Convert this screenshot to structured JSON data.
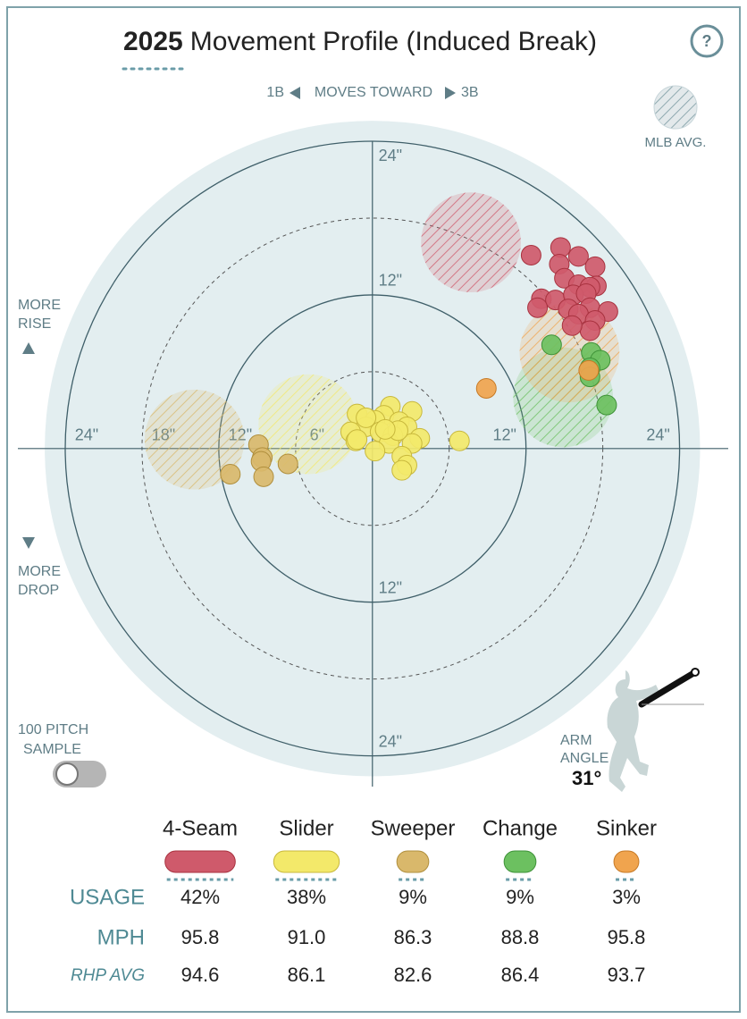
{
  "chart_data": {
    "type": "scatter",
    "title_year": "2025",
    "title": "Movement Profile (Induced Break)",
    "direction": {
      "left": "1B",
      "middle": "MOVES TOWARD",
      "right": "3B"
    },
    "legend_avg": "MLB AVG.",
    "rise_label": [
      "MORE",
      "RISE"
    ],
    "drop_label": [
      "MORE",
      "DROP"
    ],
    "sample_label": [
      "100 PITCH",
      "SAMPLE"
    ],
    "arm_angle": {
      "label": [
        "ARM",
        "ANGLE"
      ],
      "value": 31,
      "value_label": "31°"
    },
    "xlim": [
      -27.7,
      27.8
    ],
    "ylim": [
      -26.4,
      24.0
    ],
    "xticks": [
      {
        "value": -24,
        "label": "24\""
      },
      {
        "value": -18,
        "label": "18\""
      },
      {
        "value": -12,
        "label": "12\""
      },
      {
        "value": -6,
        "label": "6\""
      },
      {
        "value": 12,
        "label": "12\""
      },
      {
        "value": 24,
        "label": "24\""
      }
    ],
    "yticks": [
      {
        "value": 24,
        "label": "24\""
      },
      {
        "value": 12,
        "label": "12\""
      },
      {
        "value": -12,
        "label": "12\""
      },
      {
        "value": -24,
        "label": "24\""
      }
    ],
    "rings": [
      6,
      12,
      18,
      24
    ],
    "row_labels": [
      "USAGE",
      "MPH",
      "RHP AVG"
    ],
    "series": [
      {
        "name": "4-Seam",
        "color": "#cf5a6b",
        "stroke": "#a8323f",
        "usage": 42,
        "usage_label": "42%",
        "mph": "95.8",
        "rhp_avg": "94.6",
        "avg": [
          7.7,
          16.1
        ],
        "x": [
          12.4,
          14.7,
          16.1,
          14.6,
          17.4,
          15.0,
          16.1,
          17.5,
          17.0,
          13.2,
          14.3,
          15.7,
          16.7,
          12.9,
          15.3,
          17.0,
          16.1,
          18.4,
          17.4,
          17.0,
          15.6
        ],
        "y": [
          15.1,
          15.7,
          15.0,
          14.4,
          14.2,
          13.3,
          12.8,
          12.7,
          12.6,
          11.7,
          11.6,
          12.0,
          12.1,
          11.0,
          10.9,
          11.0,
          10.5,
          10.7,
          10.0,
          9.2,
          9.6
        ]
      },
      {
        "name": "Slider",
        "color": "#f3e96a",
        "stroke": "#c8b83c",
        "usage": 38,
        "usage_label": "38%",
        "mph": "91.0",
        "rhp_avg": "86.1",
        "avg": [
          -5.0,
          1.9
        ],
        "x": [
          1.4,
          3.1,
          -1.2,
          0.9,
          0.2,
          2.1,
          -0.5,
          2.7,
          3.7,
          -1.7,
          0.6,
          1.6,
          -1.3,
          1.3,
          3.1,
          2.3,
          0.2,
          -1.2,
          2.7,
          2.3,
          6.8,
          -0.5,
          2.0,
          1.0
        ],
        "y": [
          3.3,
          2.9,
          2.7,
          2.6,
          2.2,
          2.1,
          1.7,
          1.7,
          0.8,
          1.3,
          1.3,
          1.0,
          0.6,
          0.4,
          0.4,
          -0.6,
          -0.2,
          0.7,
          -1.3,
          -1.7,
          0.6,
          2.4,
          1.4,
          1.5
        ]
      },
      {
        "name": "Sweeper",
        "color": "#d9b86b",
        "stroke": "#b08f3d",
        "usage": 9,
        "usage_label": "9%",
        "mph": "86.3",
        "rhp_avg": "82.6",
        "avg": [
          -13.9,
          0.7
        ],
        "x": [
          -8.9,
          -8.6,
          -8.7,
          -6.6,
          -11.1,
          -8.5
        ],
        "y": [
          0.3,
          -0.7,
          -1.0,
          -1.2,
          -2.0,
          -2.2
        ]
      },
      {
        "name": "Change",
        "color": "#6cc060",
        "stroke": "#3e9238",
        "usage": 9,
        "usage_label": "9%",
        "mph": "88.8",
        "rhp_avg": "86.4",
        "avg": [
          14.9,
          4.0
        ],
        "x": [
          14.0,
          17.1,
          17.8,
          17.0,
          17.0,
          18.3
        ],
        "y": [
          8.1,
          7.5,
          6.9,
          6.3,
          5.6,
          3.4
        ]
      },
      {
        "name": "Sinker",
        "color": "#f0a44e",
        "stroke": "#c77a26",
        "usage": 3,
        "usage_label": "3%",
        "mph": "95.8",
        "rhp_avg": "93.7",
        "avg": [
          15.4,
          7.5
        ],
        "x": [
          8.9,
          16.9
        ],
        "y": [
          4.7,
          6.1
        ]
      }
    ]
  }
}
